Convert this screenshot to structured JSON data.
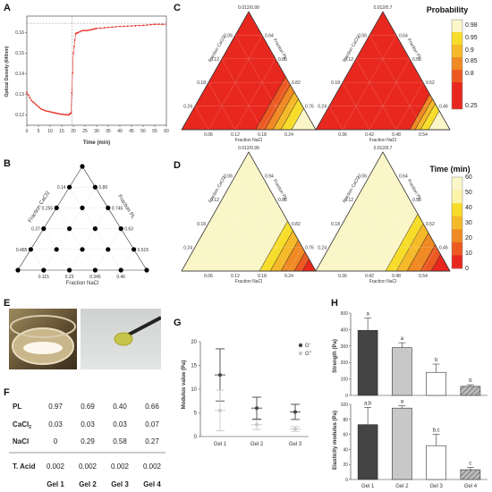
{
  "panels": {
    "A": "A",
    "B": "B",
    "C": "C",
    "D": "D",
    "E": "E",
    "F": "F",
    "G": "G",
    "H": "H"
  },
  "panelA": {
    "ylabel": "Optical Density (640nm)",
    "xlabel": "Time (min)",
    "yticks": [
      "0.12",
      "0.13",
      "0.14",
      "0.15",
      "0.16"
    ],
    "xticks": [
      "0",
      "5",
      "10",
      "15",
      "20",
      "25",
      "30",
      "35",
      "40",
      "45",
      "50",
      "55",
      "60"
    ]
  },
  "panelB": {
    "left_axis": "Fraction CaCl2",
    "right_axis": "Fraction PL",
    "bottom_axis": "Fraction  NaCl",
    "left_ticks": [
      "0.14",
      "0.255",
      "0.37",
      "0.485"
    ],
    "right_ticks": [
      "0.86",
      "0.745",
      "0.63",
      "0.515"
    ],
    "bottom_ticks": [
      "0.115",
      "0.23",
      "0.345",
      "0.46"
    ]
  },
  "panelC": {
    "left": {
      "top": "0.012/0.99",
      "left_ticks": [
        "0.06",
        "0.12",
        "0.18",
        "0.24"
      ],
      "right_ticks": [
        "0.94",
        "0.88",
        "0.82",
        "0.76"
      ],
      "bottom_ticks": [
        "0.06",
        "0.12",
        "0.18",
        "0.24"
      ],
      "left_axis": "Fraction CaCl2",
      "right_axis": "Fraction PL",
      "bottom_axis": "Fraction NaCl"
    },
    "right": {
      "top": "0.012/0.7",
      "left_ticks": [
        "0.06",
        "0.12",
        "0.18",
        "0.24"
      ],
      "right_ticks": [
        "0.64",
        "0.58",
        "0.52",
        "0.46"
      ],
      "bottom_ticks": [
        "0.36",
        "0.42",
        "0.48",
        "0.54"
      ],
      "left_axis": "Fraction CaCl2",
      "right_axis": "Fraction PL",
      "bottom_axis": "Fraction NaCl"
    }
  },
  "panelD": {
    "left": {
      "top": "0.012/0.99",
      "left_ticks": [
        "0.06",
        "0.12",
        "0.18",
        "0.24"
      ],
      "right_ticks": [
        "0.94",
        "0.88",
        "0.82",
        "0.76"
      ],
      "bottom_ticks": [
        "0.06",
        "0.12",
        "0.18",
        "0.24"
      ],
      "left_axis": "Fraction CaCl2",
      "right_axis": "Fraction PL",
      "bottom_axis": "Fraction NaCl"
    },
    "right": {
      "top": "0.012/0.7",
      "left_ticks": [
        "0.06",
        "0.12",
        "0.18",
        "0.24"
      ],
      "right_ticks": [
        "0.64",
        "0.58",
        "0.52",
        "0.46"
      ],
      "bottom_ticks": [
        "0.36",
        "0.42",
        "0.48",
        "0.54"
      ],
      "left_axis": "Fraction CaCl2",
      "right_axis": "Fraction PL",
      "bottom_axis": "Fraction NaCl"
    }
  },
  "legend_probability": {
    "title": "Probability",
    "labels": [
      "0.98",
      "0.95",
      "0.9",
      "0.85",
      "0.8",
      "0.25"
    ]
  },
  "legend_time": {
    "title": "Time (min)",
    "labels": [
      "60",
      "50",
      "40",
      "30",
      "20",
      "10",
      "0"
    ]
  },
  "panelF": {
    "rows": [
      {
        "label": "PL",
        "values": [
          "0.97",
          "0.69",
          "0.40",
          "0.66"
        ]
      },
      {
        "label": "CaCl",
        "sub": "2",
        "values": [
          "0.03",
          "0.03",
          "0.03",
          "0.07"
        ]
      },
      {
        "label": "NaCl",
        "values": [
          "0",
          "0.29",
          "0.58",
          "0.27"
        ]
      },
      {
        "label": "T. Acid",
        "values": [
          "0.002",
          "0.002",
          "0.002",
          "0.002"
        ]
      }
    ],
    "columns": [
      "Gel 1",
      "Gel 2",
      "Gel 3",
      "Gel 4"
    ]
  },
  "panelG": {
    "ylabel": "Modulus value (Pa)",
    "yticks": [
      "0",
      "5",
      "10",
      "15",
      "20"
    ],
    "categories": [
      "Gel 1",
      "Gel 2",
      "Gel 3"
    ],
    "legend": [
      "G'",
      "G''"
    ]
  },
  "panelH": {
    "top": {
      "ylabel": "Strength (Pa)",
      "yticks": [
        "0",
        "100",
        "200",
        "300",
        "400",
        "500"
      ],
      "letters": [
        "a",
        "a",
        "b",
        "b"
      ]
    },
    "bottom": {
      "ylabel": "Elasticity modulus (Pa)",
      "yticks": [
        "0",
        "20",
        "40",
        "60",
        "80",
        "100"
      ],
      "letters": [
        "a,b",
        "a",
        "b,c",
        "c"
      ]
    },
    "categories": [
      "Gel 1",
      "Gel 2",
      "Gel 3",
      "Gel 4"
    ]
  },
  "chart_data": [
    {
      "type": "scatter",
      "panel": "A",
      "x": [
        0,
        2,
        4,
        6,
        8,
        10,
        12,
        14,
        16,
        18,
        19,
        20,
        21,
        22,
        24,
        26,
        28,
        30,
        35,
        40,
        45,
        50,
        55,
        60
      ],
      "values": [
        0.131,
        0.127,
        0.125,
        0.123,
        0.122,
        0.1215,
        0.121,
        0.1205,
        0.1202,
        0.12,
        0.121,
        0.15,
        0.1595,
        0.16,
        0.161,
        0.161,
        0.1615,
        0.162,
        0.1625,
        0.163,
        0.1632,
        0.1635,
        0.164,
        0.164
      ],
      "xlim": [
        0,
        60
      ],
      "ylim": [
        0.115,
        0.168
      ]
    },
    {
      "type": "scatter",
      "panel": "G",
      "categories": [
        "Gel 1",
        "Gel 2",
        "Gel 3"
      ],
      "series": [
        {
          "name": "G'",
          "values": [
            13,
            6,
            5.2
          ],
          "err": [
            5.5,
            2.3,
            1.6
          ]
        },
        {
          "name": "G''",
          "values": [
            5.5,
            2.5,
            1.6
          ],
          "err": [
            4.3,
            1,
            0.5
          ]
        }
      ],
      "ylim": [
        0,
        20
      ]
    },
    {
      "type": "bar",
      "panel": "H-top",
      "categories": [
        "Gel 1",
        "Gel 2",
        "Gel 3",
        "Gel 4"
      ],
      "values": [
        395,
        290,
        140,
        55
      ],
      "err": [
        75,
        30,
        50,
        10
      ],
      "ylim": [
        0,
        500
      ]
    },
    {
      "type": "bar",
      "panel": "H-bottom",
      "categories": [
        "Gel 1",
        "Gel 2",
        "Gel 3",
        "Gel 4"
      ],
      "values": [
        73,
        95,
        45,
        13
      ],
      "err": [
        23,
        3,
        15,
        3
      ],
      "ylim": [
        0,
        100
      ]
    }
  ],
  "colors": {
    "red": "#e8281f",
    "orange": "#f08a24",
    "yellow": "#f7dc2a",
    "pale": "#fbf6c8",
    "dark": "#444444",
    "mid": "#aaaaaa",
    "light": "#dddddd"
  }
}
